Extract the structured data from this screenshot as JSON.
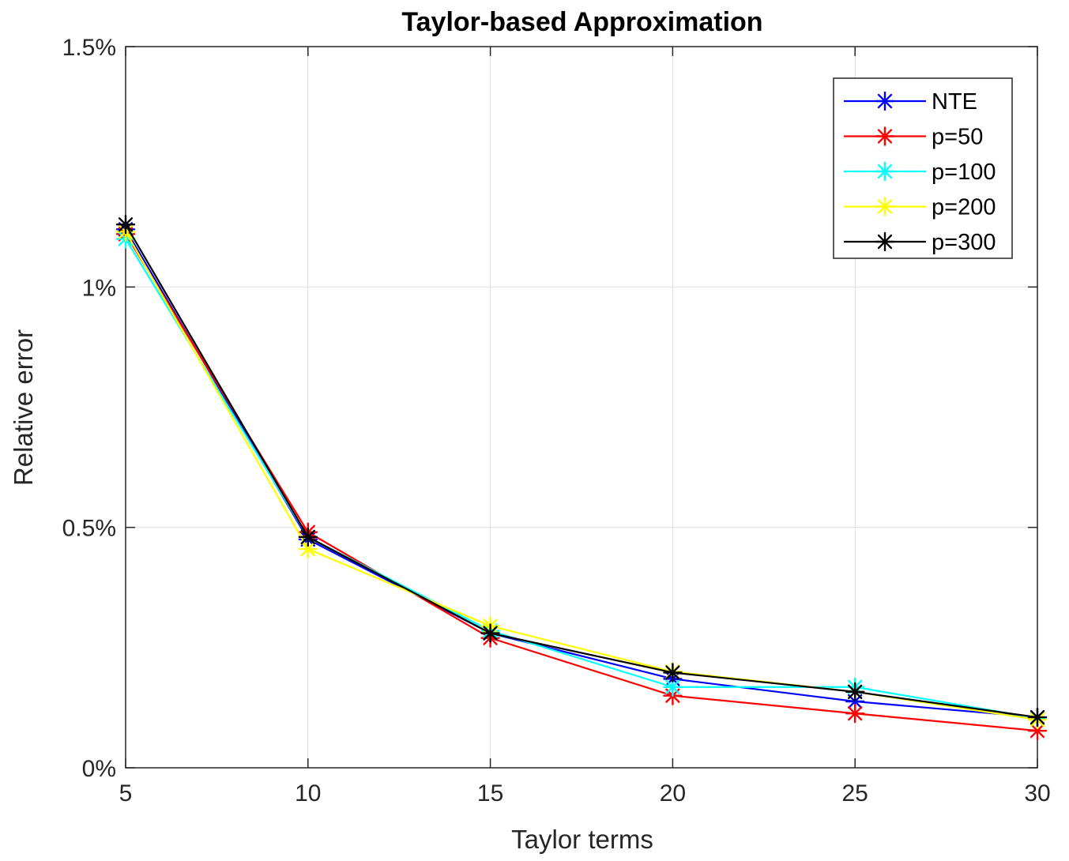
{
  "chart_data": {
    "type": "line",
    "title": "Taylor-based Approximation",
    "xlabel": "Taylor terms",
    "ylabel": "Relative error",
    "x": [
      5,
      10,
      15,
      20,
      25,
      30
    ],
    "xlim": [
      5,
      30
    ],
    "ylim": [
      0,
      1.5
    ],
    "x_ticks": [
      5,
      10,
      15,
      20,
      25,
      30
    ],
    "x_tick_labels": [
      "5",
      "10",
      "15",
      "20",
      "25",
      "30"
    ],
    "y_ticks": [
      0,
      0.5,
      1,
      1.5
    ],
    "y_tick_labels": [
      "0%",
      "0.5%",
      "1%",
      "1.5%"
    ],
    "grid": true,
    "legend_position": "top-right",
    "marker": "asterisk",
    "series": [
      {
        "name": "NTE",
        "color": "#0000ff",
        "values": [
          1.12,
          0.475,
          0.28,
          0.185,
          0.138,
          0.105
        ]
      },
      {
        "name": "p=50",
        "color": "#ff0000",
        "values": [
          1.11,
          0.49,
          0.27,
          0.15,
          0.113,
          0.077
        ]
      },
      {
        "name": "p=100",
        "color": "#00ffff",
        "values": [
          1.1,
          0.48,
          0.285,
          0.168,
          0.168,
          0.103
        ]
      },
      {
        "name": "p=200",
        "color": "#ffff00",
        "values": [
          1.115,
          0.455,
          0.295,
          0.2,
          0.158,
          0.1
        ]
      },
      {
        "name": "p=300",
        "color": "#000000",
        "values": [
          1.13,
          0.48,
          0.28,
          0.198,
          0.158,
          0.105
        ]
      }
    ]
  }
}
